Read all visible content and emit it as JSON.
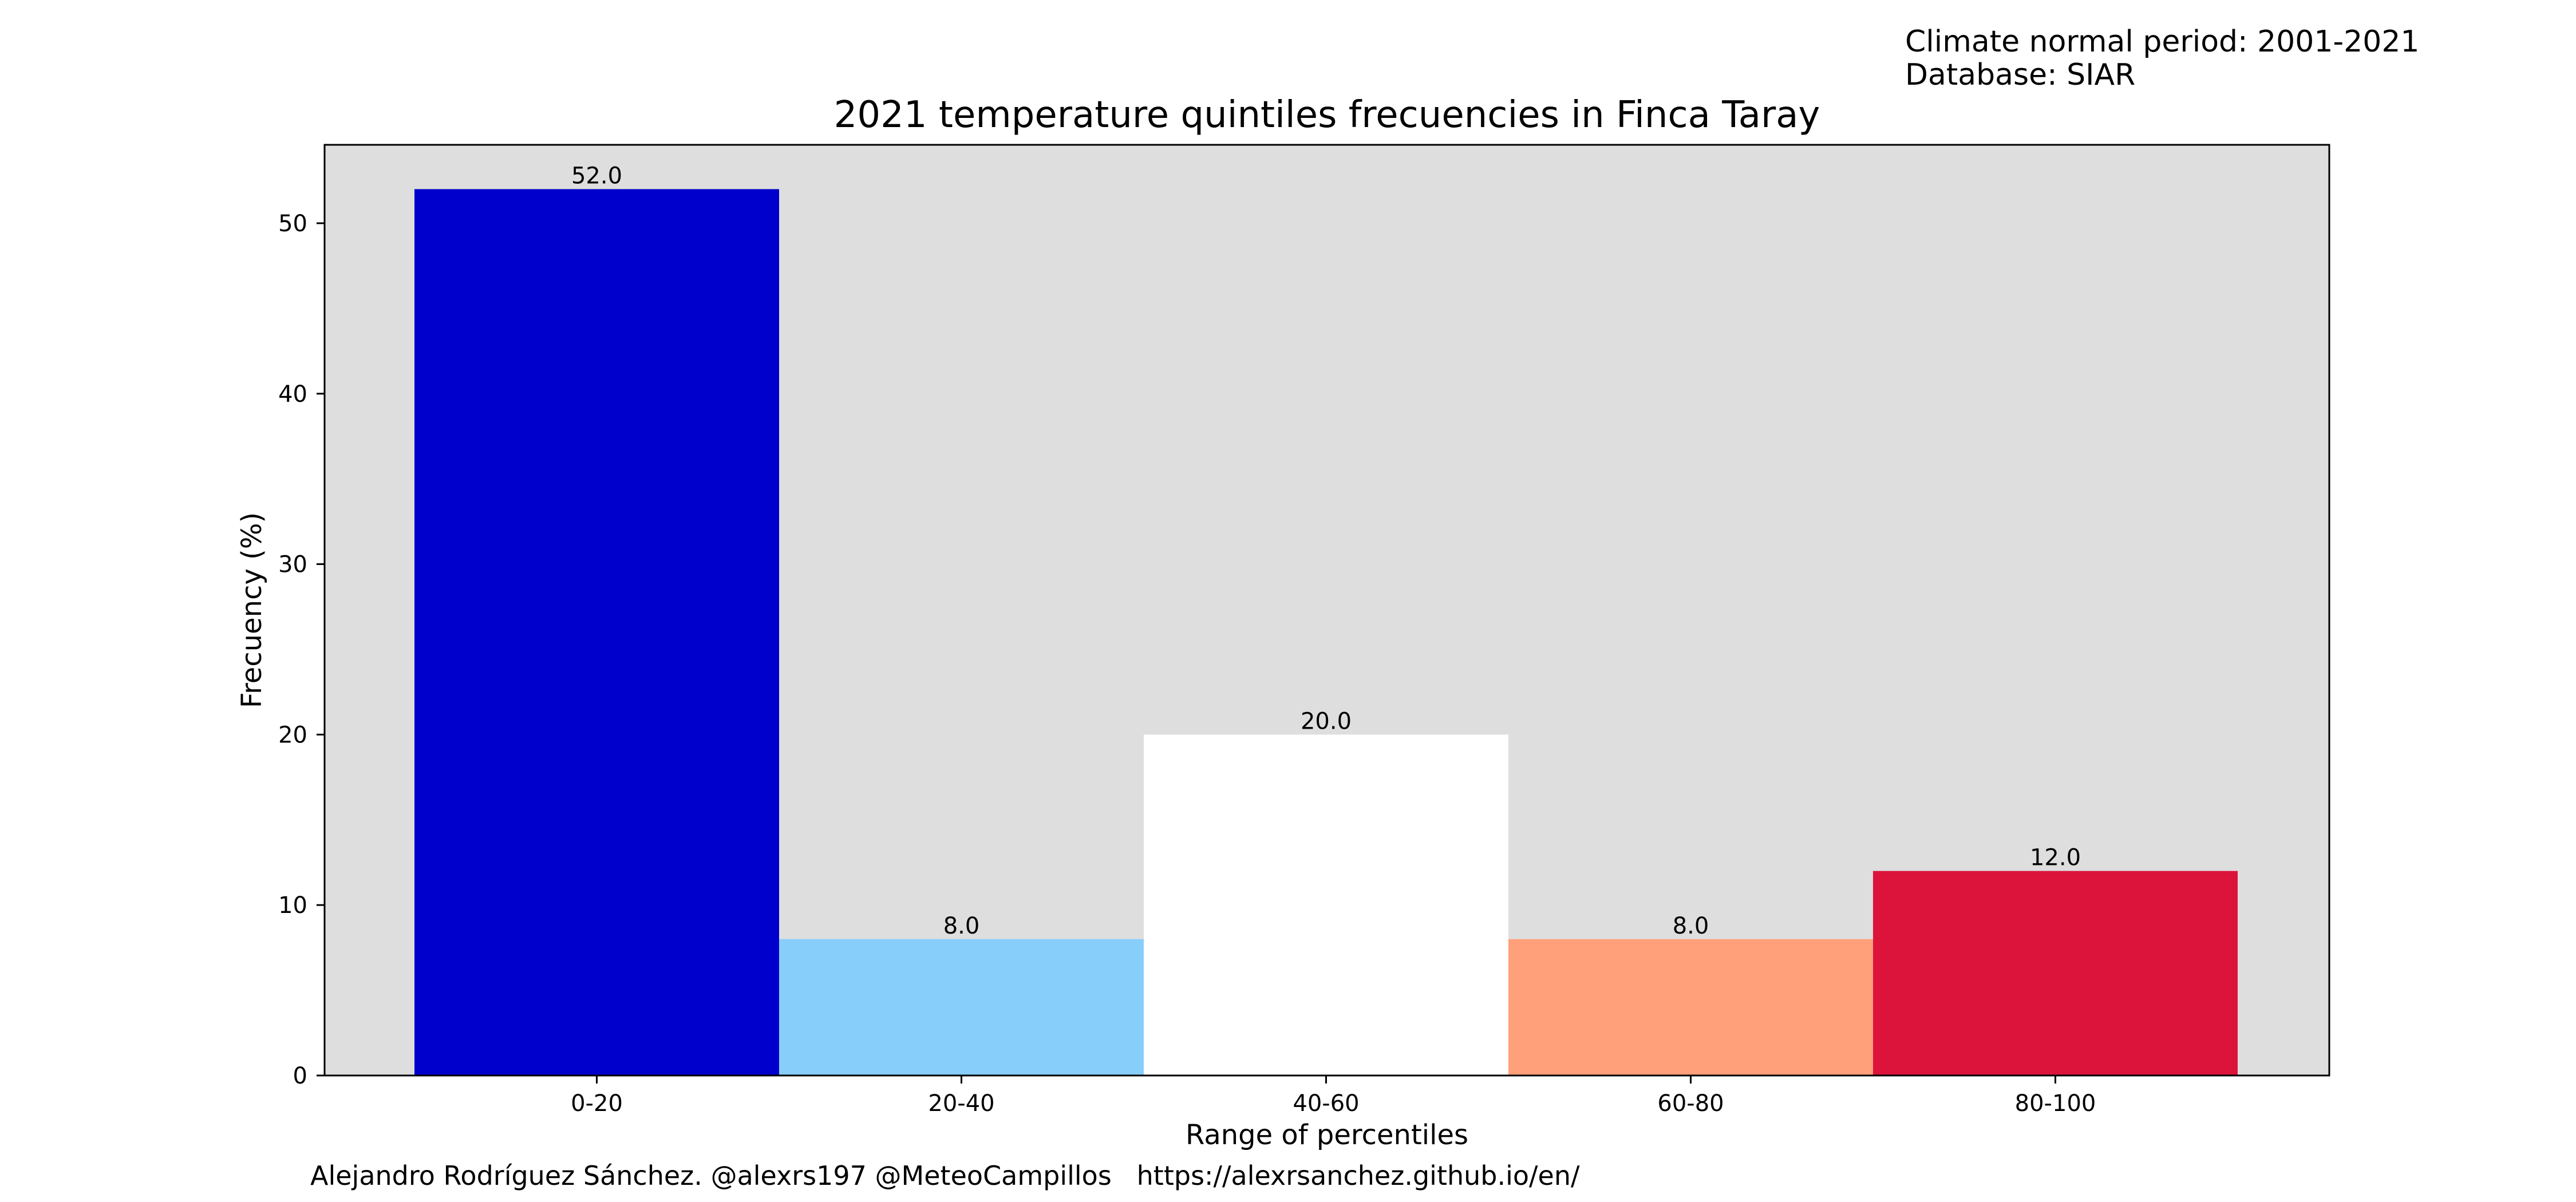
{
  "header_note": {
    "line1": "Climate normal period: 2001-2021",
    "line2": "Database: SIAR"
  },
  "footer": {
    "credit": "Alejandro Rodríguez Sánchez. @alexrs197 @MeteoCampillos   https://alexrsanchez.github.io/en/"
  },
  "chart_data": {
    "type": "bar",
    "title": "2021 temperature quintiles frecuencies in Finca Taray",
    "xlabel": "Range of percentiles",
    "ylabel": "Frecuency (%)",
    "categories": [
      "0-20",
      "20-40",
      "40-60",
      "60-80",
      "80-100"
    ],
    "values": [
      52.0,
      8.0,
      20.0,
      8.0,
      12.0
    ],
    "data_labels": [
      "52.0",
      "8.0",
      "20.0",
      "8.0",
      "12.0"
    ],
    "bar_colors": [
      "#0000cd",
      "#87cefa",
      "#ffffff",
      "#ffa07a",
      "#dc143c"
    ],
    "plot_background": "#dedede",
    "ylim": [
      0,
      54.6
    ],
    "yticks": [
      0,
      10,
      20,
      30,
      40,
      50
    ],
    "ytick_labels": [
      "0",
      "10",
      "20",
      "30",
      "40",
      "50"
    ],
    "grid": false,
    "legend": "none"
  }
}
